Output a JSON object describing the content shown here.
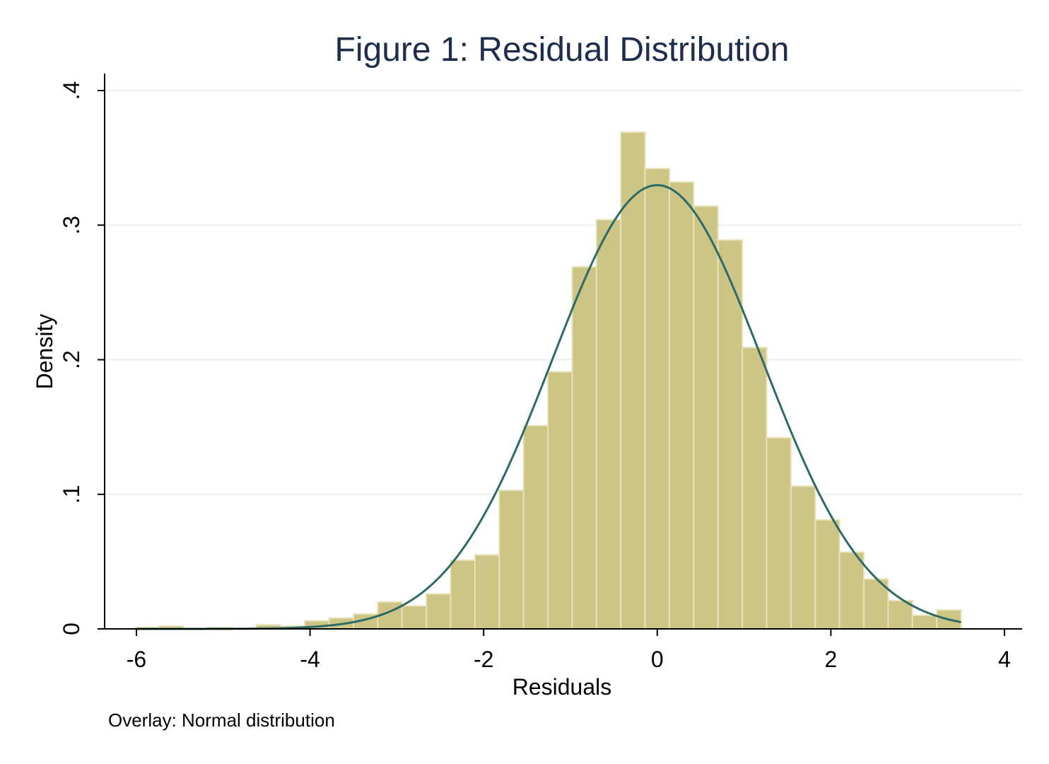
{
  "chart_data": {
    "type": "bar",
    "title": "Figure 1: Residual Distribution",
    "xlabel": "Residuals",
    "ylabel": "Density",
    "note": "Overlay: Normal distribution",
    "xlim": [
      -6,
      4
    ],
    "ylim": [
      0,
      0.4
    ],
    "x_ticks": [
      -6,
      -4,
      -2,
      0,
      2,
      4
    ],
    "x_tick_labels": [
      "-6",
      "-4",
      "-2",
      "0",
      "2",
      "4"
    ],
    "y_ticks": [
      0,
      0.1,
      0.2,
      0.3,
      0.4
    ],
    "y_tick_labels": [
      "0",
      ".1",
      ".2",
      ".3",
      ".4"
    ],
    "grid": true,
    "histogram": {
      "name": "Density",
      "bin_edges": [
        -6.02,
        -5.74,
        -5.46,
        -5.18,
        -4.9,
        -4.62,
        -4.34,
        -4.06,
        -3.78,
        -3.5,
        -3.22,
        -2.94,
        -2.66,
        -2.38,
        -2.1,
        -1.82,
        -1.54,
        -1.26,
        -0.98,
        -0.7,
        -0.42,
        -0.14,
        0.14,
        0.42,
        0.7,
        0.98,
        1.26,
        1.54,
        1.82,
        2.1,
        2.38,
        2.66,
        2.94,
        3.22,
        3.5
      ],
      "values": [
        0.001,
        0.002,
        0.0,
        0.001,
        0.0,
        0.003,
        0.002,
        0.006,
        0.008,
        0.011,
        0.02,
        0.017,
        0.026,
        0.051,
        0.055,
        0.103,
        0.151,
        0.191,
        0.269,
        0.304,
        0.369,
        0.342,
        0.332,
        0.314,
        0.289,
        0.209,
        0.142,
        0.106,
        0.081,
        0.057,
        0.037,
        0.021,
        0.01,
        0.014
      ]
    },
    "normal_overlay": {
      "name": "Normal distribution",
      "mean": 0.0,
      "sd": 1.21,
      "x_range": [
        -6.0,
        3.5
      ]
    },
    "colors": {
      "bar_fill": "#cdc585",
      "bar_edge": "#e6e1b6",
      "curve": "#2e6a66",
      "grid": "#e8f0ee",
      "title": "#1f2d4d",
      "axis": "#000000"
    }
  }
}
